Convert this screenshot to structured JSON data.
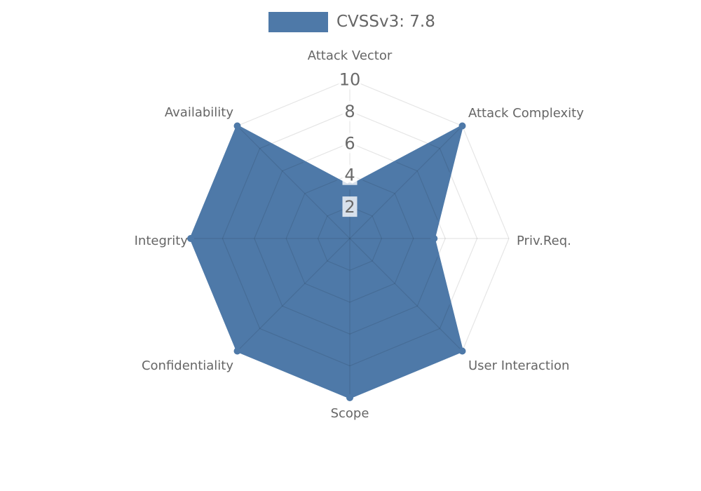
{
  "legend": {
    "label": "CVSSv3: 7.8",
    "swatch_color": "#4e79a8"
  },
  "chart_data": {
    "type": "radar",
    "title": "CVSSv3: 7.8",
    "legend_label": "CVSSv3: 7.8",
    "legend_position": "top",
    "categories": [
      "Attack Vector",
      "Attack Complexity",
      "Priv.Req.",
      "User Interaction",
      "Scope",
      "Confidentiality",
      "Integrity",
      "Availability"
    ],
    "series": [
      {
        "name": "CVSSv3: 7.8",
        "values": [
          3.3,
          10,
          5.3,
          10,
          10,
          10,
          10,
          10
        ]
      }
    ],
    "ticks": [
      2,
      4,
      6,
      8,
      10
    ],
    "rmin": 0,
    "rmax": 10,
    "grid": "on",
    "grid_shape": "polygon",
    "start_axis": "top",
    "direction": "clockwise",
    "fill_color": "#4e79a8",
    "line_color": "#4e79a8",
    "point_color": "#4e79a8",
    "grid_color": "rgba(0,0,0,0.10)",
    "tick_backdrop_color": "rgba(255,255,255,0.78)",
    "tick_text_color": "#6a6a6a",
    "axis_label_color": "#666666",
    "legend_text_color": "#666666"
  }
}
